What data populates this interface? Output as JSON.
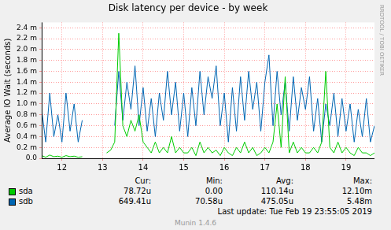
{
  "chart_data": {
    "type": "line",
    "title": "Disk latency per device - by week",
    "y_label": "Average IO Wait (seconds)",
    "x": [
      11.5,
      11.6,
      11.7,
      11.8,
      11.9,
      12,
      12.1,
      12.2,
      12.3,
      12.4,
      12.5,
      12.6,
      12.7,
      12.8,
      12.9,
      13,
      13.1,
      13.2,
      13.3,
      13.4,
      13.5,
      13.6,
      13.7,
      13.8,
      13.9,
      14,
      14.1,
      14.2,
      14.3,
      14.4,
      14.5,
      14.6,
      14.7,
      14.8,
      14.9,
      15,
      15.1,
      15.2,
      15.3,
      15.4,
      15.5,
      15.6,
      15.7,
      15.8,
      15.9,
      16,
      16.1,
      16.2,
      16.3,
      16.4,
      16.5,
      16.6,
      16.7,
      16.8,
      16.9,
      17,
      17.1,
      17.2,
      17.3,
      17.4,
      17.5,
      17.6,
      17.7,
      17.8,
      17.9,
      18,
      18.1,
      18.2,
      18.3,
      18.4,
      18.5,
      18.6,
      18.7,
      18.8,
      18.9,
      19,
      19.1,
      19.2,
      19.3,
      19.4,
      19.5,
      19.6,
      19.7
    ],
    "series": [
      {
        "name": "sda",
        "color": "#00cc00",
        "values": [
          5e-05,
          2e-05,
          6e-05,
          3e-05,
          4e-05,
          2e-05,
          5e-05,
          3e-05,
          4e-05,
          2e-05,
          3e-05,
          null,
          null,
          null,
          null,
          null,
          0.0001,
          0.00015,
          0.0003,
          0.0023,
          0.0006,
          0.0004,
          0.0007,
          0.0005,
          0.0008,
          0.0003,
          0.0002,
          0.0001,
          0.0003,
          0.0001,
          0.0002,
          0.0001,
          0.0004,
          0.0001,
          0.0002,
          0.0001,
          0.0001,
          0.0002,
          5e-05,
          0.0003,
          0.0001,
          0.0002,
          0.0001,
          0.00015,
          5e-05,
          0.0002,
          0.0001,
          5e-05,
          0.0002,
          0.0001,
          0.0003,
          0.0001,
          0.0002,
          5e-05,
          0.0001,
          0.0002,
          0.0001,
          0.0003,
          0.001,
          0.0002,
          0.0015,
          0.0001,
          0.0003,
          0.0001,
          0.0002,
          0.0001,
          0.0001,
          0.0002,
          0.0001,
          0.0003,
          0.0016,
          0.0002,
          0.0001,
          0.0003,
          0.0001,
          0.0002,
          0.0001,
          5e-05,
          0.0002,
          0.0001,
          0.0001,
          5e-05,
          0.0001
        ]
      },
      {
        "name": "sdb",
        "color": "#0066b3",
        "values": [
          0.0009,
          0.0003,
          0.0012,
          0.0004,
          0.0008,
          0.0003,
          0.0012,
          0.0005,
          0.001,
          0.0003,
          0.0007,
          null,
          null,
          null,
          null,
          null,
          0.0013,
          null,
          0.0006,
          0.0016,
          0.0007,
          0.0014,
          0.0009,
          0.0017,
          0.0006,
          0.0013,
          0.0005,
          0.0011,
          0.0004,
          0.0012,
          0.0007,
          0.0016,
          0.0008,
          0.0014,
          0.0005,
          0.0012,
          0.0004,
          0.0013,
          0.0006,
          0.0016,
          0.0008,
          0.0015,
          0.0011,
          0.0017,
          0.0006,
          0.0012,
          0.0003,
          0.0013,
          0.0005,
          0.0015,
          0.0007,
          0.0016,
          0.0009,
          0.0014,
          0.0005,
          0.0014,
          0.0019,
          0.0006,
          0.0016,
          0.0008,
          0.0014,
          0.0005,
          0.0015,
          0.0007,
          0.0013,
          0.0009,
          0.0015,
          0.0005,
          0.0011,
          0.0003,
          0.001,
          0.0006,
          0.0012,
          0.0004,
          0.0011,
          0.0005,
          0.001,
          0.0003,
          0.0009,
          0.0004,
          0.0011,
          0.0003,
          0.0006
        ]
      }
    ],
    "xlim": [
      11.5,
      19.7
    ],
    "xticks": [
      12,
      13,
      14,
      15,
      16,
      17,
      18,
      19
    ],
    "ylim": [
      0,
      0.0025
    ],
    "yticks": [
      {
        "value": 0,
        "label": "0.0"
      },
      {
        "value": 0.0002,
        "label": "0.2 m"
      },
      {
        "value": 0.0004,
        "label": "0.4 m"
      },
      {
        "value": 0.0006,
        "label": "0.6 m"
      },
      {
        "value": 0.0008,
        "label": "0.8 m"
      },
      {
        "value": 0.001,
        "label": "1.0 m"
      },
      {
        "value": 0.0012,
        "label": "1.2 m"
      },
      {
        "value": 0.0014,
        "label": "1.4 m"
      },
      {
        "value": 0.0016,
        "label": "1.6 m"
      },
      {
        "value": 0.0018,
        "label": "1.8 m"
      },
      {
        "value": 0.002,
        "label": "2.0 m"
      },
      {
        "value": 0.0022,
        "label": "2.2 m"
      },
      {
        "value": 0.0024,
        "label": "2.4 m"
      }
    ],
    "grid": true,
    "stats": {
      "columns": [
        "Cur:",
        "Min:",
        "Avg:",
        "Max:"
      ],
      "rows": [
        [
          "78.72u",
          "0.00",
          "110.14u",
          "12.10m"
        ],
        [
          "649.41u",
          "70.58u",
          "475.05u",
          "5.48m"
        ]
      ]
    },
    "last_update": "Last update:  Tue Feb 19 23:55:05 2019",
    "footer": "Munin 1.4.6",
    "watermark": "RRDTOOL / TOBI OETIKER"
  }
}
